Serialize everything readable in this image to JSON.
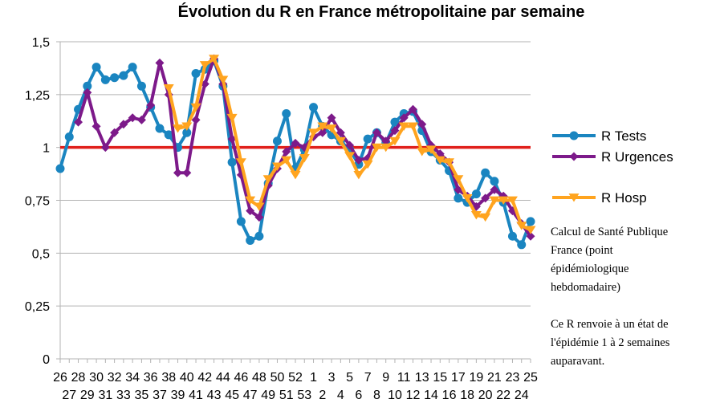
{
  "chart_data": {
    "type": "line",
    "title": "Évolution du R en France métropolitaine par semaine",
    "xlabel": "",
    "ylabel": "",
    "ylim": [
      0,
      1.5
    ],
    "yticks": [
      "0",
      "0,25",
      "0,5",
      "0,75",
      "1",
      "1,25",
      "1,5"
    ],
    "ytick_values": [
      0,
      0.25,
      0.5,
      0.75,
      1,
      1.25,
      1.5
    ],
    "grid": "horizontal",
    "legend_position": "right",
    "x": [
      "26",
      "27",
      "28",
      "29",
      "30",
      "31",
      "32",
      "33",
      "34",
      "35",
      "36",
      "37",
      "38",
      "39",
      "40",
      "41",
      "42",
      "43",
      "44",
      "45",
      "46",
      "47",
      "48",
      "49",
      "50",
      "51",
      "52",
      "53",
      "1",
      "2",
      "3",
      "4",
      "5",
      "6",
      "7",
      "8",
      "9",
      "10",
      "11",
      "12",
      "13",
      "14",
      "15",
      "16",
      "17",
      "18",
      "19",
      "20",
      "21",
      "22",
      "23",
      "24",
      "25"
    ],
    "series": [
      {
        "name": "R Tests",
        "color": "#1a85c0",
        "marker": "circle",
        "values": [
          0.9,
          1.05,
          1.18,
          1.29,
          1.38,
          1.32,
          1.33,
          1.34,
          1.38,
          1.29,
          1.19,
          1.09,
          1.06,
          1.0,
          1.07,
          1.35,
          1.37,
          1.41,
          1.29,
          0.93,
          0.65,
          0.56,
          0.58,
          0.83,
          1.03,
          1.16,
          0.9,
          0.99,
          1.19,
          1.1,
          1.06,
          1.03,
          0.99,
          0.92,
          1.04,
          1.07,
          1.02,
          1.12,
          1.16,
          1.17,
          1.08,
          0.98,
          0.94,
          0.89,
          0.76,
          0.74,
          0.78,
          0.88,
          0.84,
          0.74,
          0.58,
          0.54,
          0.65
        ]
      },
      {
        "name": "R Urgences",
        "color": "#7d1a8a",
        "marker": "diamond",
        "values": [
          null,
          null,
          1.12,
          1.26,
          1.1,
          1.0,
          1.07,
          1.11,
          1.14,
          1.13,
          1.2,
          1.4,
          1.25,
          0.88,
          0.88,
          1.13,
          1.3,
          1.42,
          1.3,
          1.04,
          0.87,
          0.7,
          0.67,
          0.82,
          0.9,
          0.98,
          1.02,
          1.0,
          1.05,
          1.07,
          1.14,
          1.07,
          1.01,
          0.94,
          0.95,
          1.07,
          1.03,
          1.08,
          1.14,
          1.18,
          1.11,
          1.01,
          0.97,
          0.93,
          0.8,
          0.77,
          0.72,
          0.76,
          0.8,
          0.77,
          0.7,
          0.64,
          0.58
        ]
      },
      {
        "name": "R Hosp",
        "color": "#ffa41f",
        "marker": "triangle-down",
        "values": [
          null,
          null,
          null,
          null,
          null,
          null,
          null,
          null,
          null,
          null,
          null,
          null,
          1.28,
          1.09,
          1.1,
          1.19,
          1.39,
          1.42,
          1.32,
          1.14,
          0.93,
          0.75,
          0.72,
          0.85,
          0.91,
          0.94,
          0.87,
          0.95,
          1.07,
          1.1,
          1.09,
          1.03,
          0.96,
          0.87,
          0.92,
          1.0,
          1.0,
          1.03,
          1.1,
          1.1,
          0.98,
          0.99,
          0.94,
          0.93,
          0.85,
          0.76,
          0.68,
          0.67,
          0.75,
          0.75,
          0.75,
          0.63,
          0.61
        ]
      }
    ],
    "reference_line": {
      "value": 1,
      "color": "#e0201b"
    },
    "note_lines": [
      "Calcul de Santé Publique",
      "France (point",
      "épidémiologique",
      "hebdomadaire)",
      "",
      "Ce R renvoie à un état de",
      "l'épidémie 1 à 2 semaines",
      "auparavant."
    ]
  }
}
